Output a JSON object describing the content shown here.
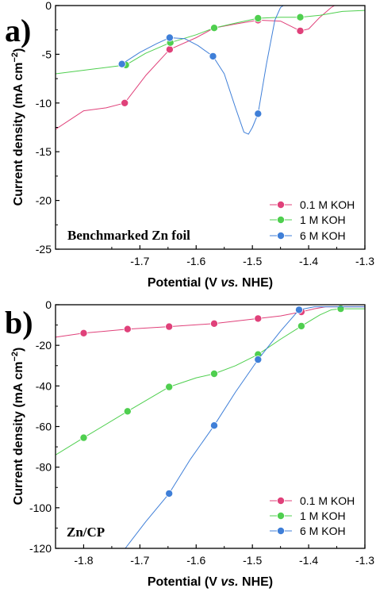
{
  "chart_data": [
    {
      "panel_label": "a)",
      "type": "line",
      "annotation": "Benchmarked Zn foil",
      "xlabel": "Potential (V vs. NHE)",
      "ylabel": "Current density (mA cm−2)",
      "xlim": [
        -1.85,
        -1.3
      ],
      "ylim": [
        -25,
        0
      ],
      "xticks": [
        -1.7,
        -1.6,
        -1.5,
        -1.4,
        -1.3
      ],
      "xtick_labels": [
        "-1.7",
        "-1.6",
        "-1.5",
        "-1.4",
        "-1.3"
      ],
      "yticks": [
        0,
        -5,
        -10,
        -15,
        -20,
        -25
      ],
      "ytick_labels": [
        "0",
        "-5",
        "-10",
        "-15",
        "-20",
        "-25"
      ],
      "legend_position": "bottom-right",
      "series": [
        {
          "name": "0.1 M KOH",
          "color": "#e0417a",
          "line": [
            [
              -1.85,
              -12.7
            ],
            [
              -1.8,
              -10.8
            ],
            [
              -1.76,
              -10.5
            ],
            [
              -1.727,
              -10.0
            ],
            [
              -1.69,
              -7.2
            ],
            [
              -1.647,
              -4.5
            ],
            [
              -1.6,
              -3.3
            ],
            [
              -1.568,
              -2.3
            ],
            [
              -1.53,
              -1.9
            ],
            [
              -1.49,
              -1.5
            ],
            [
              -1.45,
              -1.6
            ],
            [
              -1.415,
              -2.6
            ],
            [
              -1.4,
              -2.4
            ],
            [
              -1.38,
              -1.2
            ],
            [
              -1.36,
              -0.2
            ],
            [
              -1.354,
              0.0
            ]
          ],
          "points": [
            [
              -1.727,
              -10.0
            ],
            [
              -1.647,
              -4.5
            ],
            [
              -1.568,
              -2.3
            ],
            [
              -1.49,
              -1.5
            ],
            [
              -1.415,
              -2.6
            ]
          ]
        },
        {
          "name": "1 M KOH",
          "color": "#4fcf4f",
          "line": [
            [
              -1.85,
              -7.0
            ],
            [
              -1.78,
              -6.5
            ],
            [
              -1.725,
              -6.1
            ],
            [
              -1.69,
              -4.9
            ],
            [
              -1.646,
              -3.8
            ],
            [
              -1.6,
              -3.0
            ],
            [
              -1.568,
              -2.3
            ],
            [
              -1.53,
              -1.8
            ],
            [
              -1.49,
              -1.3
            ],
            [
              -1.45,
              -1.2
            ],
            [
              -1.415,
              -1.2
            ],
            [
              -1.38,
              -1.0
            ],
            [
              -1.34,
              -0.6
            ],
            [
              -1.3,
              -0.5
            ]
          ],
          "points": [
            [
              -1.725,
              -6.1
            ],
            [
              -1.646,
              -3.8
            ],
            [
              -1.568,
              -2.3
            ],
            [
              -1.49,
              -1.3
            ],
            [
              -1.415,
              -1.2
            ]
          ]
        },
        {
          "name": "6 M KOH",
          "color": "#3f7fd8",
          "line": [
            [
              -1.732,
              -6.0
            ],
            [
              -1.7,
              -4.8
            ],
            [
              -1.67,
              -3.9
            ],
            [
              -1.647,
              -3.3
            ],
            [
              -1.62,
              -3.4
            ],
            [
              -1.597,
              -4.1
            ],
            [
              -1.57,
              -5.2
            ],
            [
              -1.55,
              -7.0
            ],
            [
              -1.53,
              -10.5
            ],
            [
              -1.515,
              -13.0
            ],
            [
              -1.507,
              -13.2
            ],
            [
              -1.5,
              -12.5
            ],
            [
              -1.49,
              -11.1
            ],
            [
              -1.475,
              -6.0
            ],
            [
              -1.46,
              -1.5
            ],
            [
              -1.45,
              -0.2
            ],
            [
              -1.445,
              0.0
            ]
          ],
          "points": [
            [
              -1.732,
              -6.0
            ],
            [
              -1.647,
              -3.3
            ],
            [
              -1.57,
              -5.2
            ],
            [
              -1.49,
              -11.1
            ]
          ]
        }
      ]
    },
    {
      "panel_label": "b)",
      "type": "line",
      "annotation": "Zn/CP",
      "xlabel": "Potential (V vs. NHE)",
      "ylabel": "Current density (mA cm−2)",
      "xlim": [
        -1.85,
        -1.3
      ],
      "ylim": [
        -120,
        0
      ],
      "xticks": [
        -1.8,
        -1.7,
        -1.6,
        -1.5,
        -1.4,
        -1.3
      ],
      "xtick_labels": [
        "-1.8",
        "-1.7",
        "-1.6",
        "-1.5",
        "-1.4",
        "-1.3"
      ],
      "yticks": [
        0,
        -20,
        -40,
        -60,
        -80,
        -100,
        -120
      ],
      "ytick_labels": [
        "0",
        "-20",
        "-40",
        "-60",
        "-80",
        "-100",
        "-120"
      ],
      "legend_position": "bottom-right",
      "series": [
        {
          "name": "0.1 M KOH",
          "color": "#e0417a",
          "line": [
            [
              -1.85,
              -16.0
            ],
            [
              -1.8,
              -14.0
            ],
            [
              -1.722,
              -12.0
            ],
            [
              -1.648,
              -10.8
            ],
            [
              -1.568,
              -9.3
            ],
            [
              -1.49,
              -6.8
            ],
            [
              -1.45,
              -5.5
            ],
            [
              -1.413,
              -3.5
            ],
            [
              -1.39,
              -2.0
            ],
            [
              -1.37,
              -1.0
            ],
            [
              -1.3,
              -1.0
            ]
          ],
          "points": [
            [
              -1.8,
              -14.0
            ],
            [
              -1.722,
              -12.0
            ],
            [
              -1.648,
              -10.8
            ],
            [
              -1.568,
              -9.3
            ],
            [
              -1.49,
              -6.8
            ],
            [
              -1.413,
              -3.5
            ]
          ]
        },
        {
          "name": "1 M KOH",
          "color": "#4fcf4f",
          "line": [
            [
              -1.85,
              -74.0
            ],
            [
              -1.8,
              -65.5
            ],
            [
              -1.722,
              -52.5
            ],
            [
              -1.648,
              -40.5
            ],
            [
              -1.6,
              -36.0
            ],
            [
              -1.568,
              -34.0
            ],
            [
              -1.53,
              -30.0
            ],
            [
              -1.49,
              -24.5
            ],
            [
              -1.45,
              -17.0
            ],
            [
              -1.413,
              -10.5
            ],
            [
              -1.38,
              -5.0
            ],
            [
              -1.36,
              -2.5
            ],
            [
              -1.343,
              -2.0
            ],
            [
              -1.3,
              -2.0
            ]
          ],
          "points": [
            [
              -1.8,
              -65.5
            ],
            [
              -1.722,
              -52.5
            ],
            [
              -1.648,
              -40.5
            ],
            [
              -1.568,
              -34.0
            ],
            [
              -1.49,
              -24.5
            ],
            [
              -1.413,
              -10.5
            ],
            [
              -1.343,
              -2.0
            ]
          ]
        },
        {
          "name": "6 M KOH",
          "color": "#3f7fd8",
          "line": [
            [
              -1.726,
              -120.0
            ],
            [
              -1.69,
              -107.0
            ],
            [
              -1.648,
              -93.0
            ],
            [
              -1.61,
              -76.0
            ],
            [
              -1.568,
              -59.5
            ],
            [
              -1.53,
              -43.0
            ],
            [
              -1.49,
              -27.0
            ],
            [
              -1.45,
              -13.0
            ],
            [
              -1.417,
              -2.5
            ],
            [
              -1.39,
              -1.0
            ],
            [
              -1.3,
              -1.0
            ]
          ],
          "points": [
            [
              -1.648,
              -93.0
            ],
            [
              -1.568,
              -59.5
            ],
            [
              -1.49,
              -27.0
            ],
            [
              -1.417,
              -2.5
            ]
          ]
        }
      ]
    }
  ]
}
